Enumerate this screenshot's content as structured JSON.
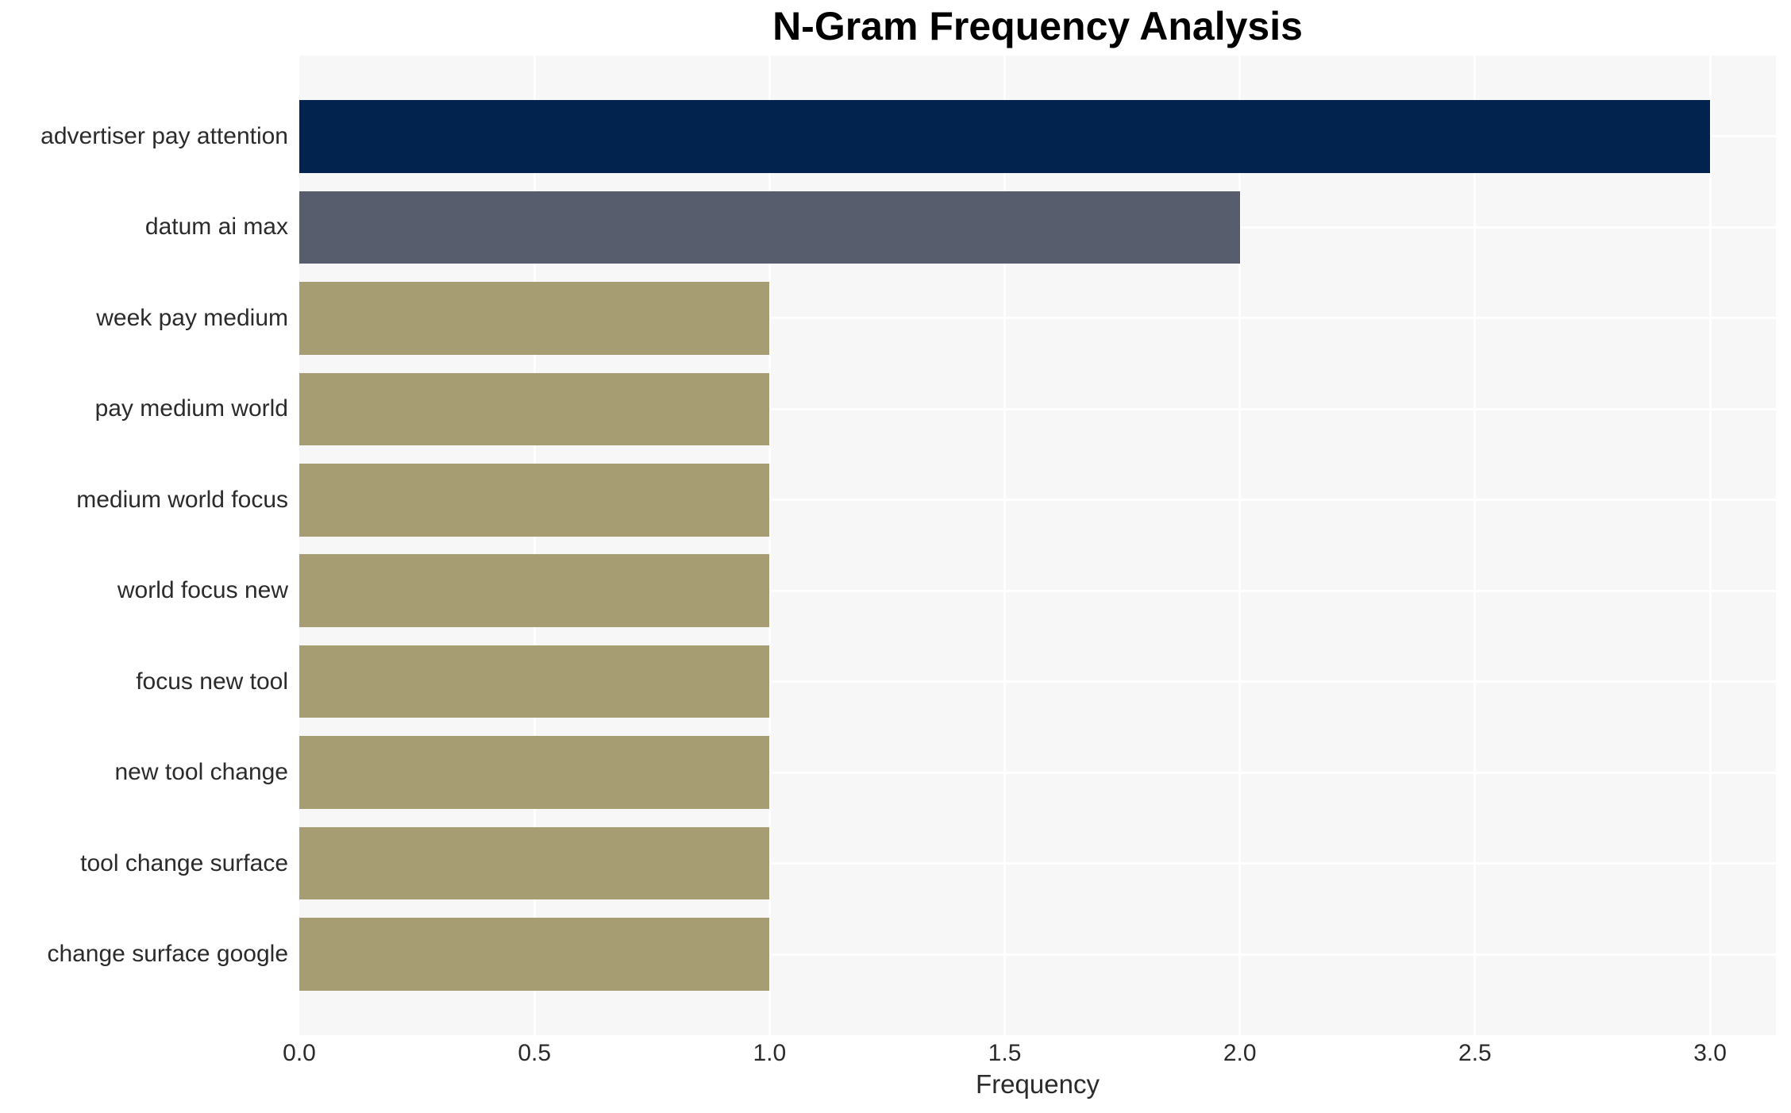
{
  "chart_data": {
    "type": "bar",
    "orientation": "horizontal",
    "title": "N-Gram Frequency Analysis",
    "xlabel": "Frequency",
    "ylabel": "",
    "categories": [
      "advertiser pay attention",
      "datum ai max",
      "week pay medium",
      "pay medium world",
      "medium world focus",
      "world focus new",
      "focus new tool",
      "new tool change",
      "tool change surface",
      "change surface google"
    ],
    "values": [
      3,
      2,
      1,
      1,
      1,
      1,
      1,
      1,
      1,
      1
    ],
    "xticks": [
      0.0,
      0.5,
      1.0,
      1.5,
      2.0,
      2.5,
      3.0
    ],
    "xtick_labels": [
      "0.0",
      "0.5",
      "1.0",
      "1.5",
      "2.0",
      "2.5",
      "3.0"
    ],
    "xlim": [
      0,
      3.14
    ],
    "grid": true,
    "legend": false,
    "bar_colors": [
      "#02234e",
      "#575d6c",
      "#a69e72",
      "#a69e72",
      "#a69e72",
      "#a69e72",
      "#a69e72",
      "#a69e72",
      "#a69e72",
      "#a69e72"
    ],
    "colors": {
      "plot_background": "#f7f7f7",
      "gridline": "#ffffff",
      "tick_text": "#2b2b2b",
      "title_text": "#000000"
    }
  }
}
